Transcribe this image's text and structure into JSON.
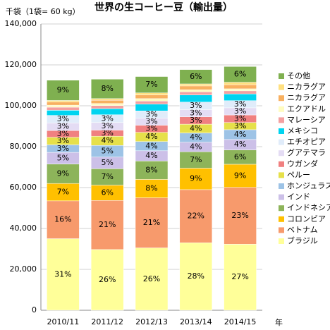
{
  "chart_data": {
    "type": "stacked-bar",
    "title": "世界の生コーヒー豆（輸出量）",
    "y_label": "千袋（1袋= 60 kg）",
    "x_label": "年",
    "categories": [
      "2010/11",
      "2011/12",
      "2012/13",
      "2013/14",
      "2014/15"
    ],
    "ylim": [
      0,
      140000
    ],
    "yticks": [
      0,
      {
        "value": 20000,
        "label": "20,000"
      },
      {
        "value": 40000,
        "label": "40,000"
      },
      {
        "value": 60000,
        "label": "60,000"
      },
      {
        "value": 80000,
        "label": "80,000"
      },
      {
        "value": 100000,
        "label": "100,000"
      },
      {
        "value": 120000,
        "label": "120,000"
      },
      {
        "value": 140000,
        "label": "140,000"
      }
    ],
    "grid": true,
    "series": [
      {
        "name": "ブラジル",
        "color": "#ffff99",
        "values": [
          35000,
          29700,
          30500,
          33000,
          32300
        ],
        "value_labels": [
          "31%",
          "26%",
          "26%",
          "28%",
          "27%"
        ]
      },
      {
        "name": "ベトナム",
        "color": "#f79a6c",
        "values": [
          18500,
          24000,
          24500,
          26000,
          27800
        ],
        "value_labels": [
          "16%",
          "21%",
          "21%",
          "22%",
          "23%"
        ]
      },
      {
        "name": "コロンビア",
        "color": "#ffc000",
        "values": [
          8500,
          7500,
          9000,
          10500,
          11300
        ],
        "value_labels": [
          "7%",
          "6%",
          "8%",
          "9%",
          "9%"
        ]
      },
      {
        "name": "インドネシア",
        "color": "#8db45a",
        "values": [
          9500,
          8000,
          9000,
          8000,
          7000
        ],
        "value_labels": [
          "9%",
          "7%",
          "8%",
          "7%",
          "6%"
        ]
      },
      {
        "name": "インド",
        "color": "#ccc0e8",
        "values": [
          5700,
          5700,
          5000,
          4700,
          5100
        ],
        "value_labels": [
          "5%",
          "5%",
          "4%",
          "4%",
          "4%"
        ]
      },
      {
        "name": "ホンジュラス",
        "color": "#9dc3e6",
        "values": [
          3700,
          5700,
          4500,
          4500,
          4800
        ],
        "value_labels": [
          "3%",
          "5%",
          "4%",
          "4%",
          "4%"
        ]
      },
      {
        "name": "ペルー",
        "color": "#e6e04a",
        "values": [
          3700,
          4500,
          4500,
          4300,
          3500
        ],
        "value_labels": [
          "3%",
          "4%",
          "4%",
          "4%",
          "3%"
        ]
      },
      {
        "name": "ウガンダ",
        "color": "#f08080",
        "values": [
          3300,
          3000,
          3500,
          3600,
          3700
        ],
        "value_labels": [
          "3%",
          "3%",
          "3%",
          "3%",
          "3%"
        ]
      },
      {
        "name": "グアテマラ",
        "color": "#e4dcf4",
        "values": [
          3700,
          3700,
          3500,
          3500,
          3500
        ],
        "value_labels": [
          "3%",
          "3%",
          "3%",
          "3%",
          "3%"
        ]
      },
      {
        "name": "エチオピア",
        "color": "#e0ecfa",
        "values": [
          3700,
          3800,
          3500,
          3700,
          3500
        ],
        "value_labels": [
          "3%",
          "3%",
          "3%",
          "3%",
          "3%"
        ]
      },
      {
        "name": "メキシコ",
        "color": "#00d4f0",
        "values": [
          2500,
          3000,
          3300,
          3500,
          3300
        ]
      },
      {
        "name": "マレーシア",
        "color": "#f4a0a0",
        "values": [
          1500,
          1500,
          1500,
          1500,
          1500
        ]
      },
      {
        "name": "エクアドル",
        "color": "#fffcc0",
        "values": [
          1000,
          1000,
          1200,
          1000,
          1000
        ]
      },
      {
        "name": "ニカラグア",
        "color": "#f8b060",
        "values": [
          1500,
          1600,
          1800,
          1900,
          2000
        ]
      },
      {
        "name": "ニカラグア",
        "color": "#ffe080",
        "values": [
          800,
          800,
          1000,
          1000,
          1200
        ]
      },
      {
        "name": "その他",
        "color": "#7fb050",
        "values": [
          9900,
          9500,
          8000,
          7000,
          7700
        ],
        "value_labels": [
          "9%",
          "8%",
          "7%",
          "6%",
          "6%"
        ]
      }
    ]
  }
}
